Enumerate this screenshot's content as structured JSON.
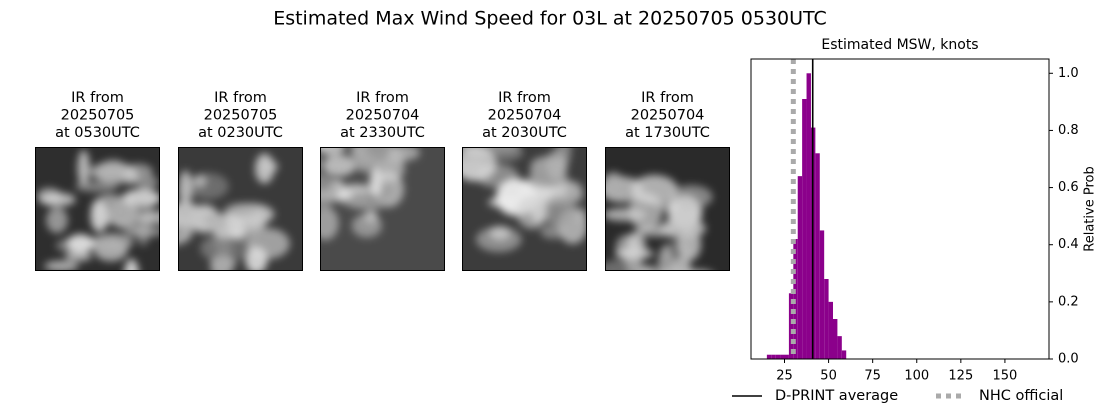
{
  "title": "Estimated Max Wind Speed for 03L at 20250705 0530UTC",
  "panels": [
    {
      "title_lines": [
        "IR from",
        "20250705",
        "at 0530UTC"
      ]
    },
    {
      "title_lines": [
        "IR from",
        "20250705",
        "at 0230UTC"
      ]
    },
    {
      "title_lines": [
        "IR from",
        "20250704",
        "at 2330UTC"
      ]
    },
    {
      "title_lines": [
        "IR from",
        "20250704",
        "at 2030UTC"
      ]
    },
    {
      "title_lines": [
        "IR from",
        "20250704",
        "at 1730UTC"
      ]
    }
  ],
  "chart_data": {
    "type": "histogram",
    "title": "Estimated MSW, knots",
    "ylabel": "Relative Prob",
    "bins": [
      15,
      17.5,
      20,
      22.5,
      25,
      27.5,
      30,
      32.5,
      35,
      37.5,
      40,
      42.5,
      45,
      47.5,
      50,
      52.5,
      55,
      57.5,
      60
    ],
    "values": [
      0.015,
      0.015,
      0.015,
      0.015,
      0.015,
      0.23,
      0.42,
      0.64,
      0.91,
      1.0,
      0.81,
      0.72,
      0.45,
      0.28,
      0.2,
      0.14,
      0.08,
      0.03
    ],
    "color": "#8b008b",
    "xlim": [
      6,
      175
    ],
    "xticks": [
      25,
      50,
      75,
      100,
      125,
      150
    ],
    "ylim": [
      0,
      1.05
    ],
    "yticks": [
      {
        "value": 0,
        "label": "0.0"
      },
      0.2,
      0.4,
      0.6,
      0.8,
      {
        "value": 1,
        "label": "1.0"
      }
    ],
    "lines": [
      {
        "name": "D-PRINT average",
        "value": 41,
        "color": "#000000",
        "style": "solid"
      },
      {
        "name": "NHC official",
        "value": 30,
        "color": "#aaaaaa",
        "style": "dotted"
      }
    ]
  }
}
